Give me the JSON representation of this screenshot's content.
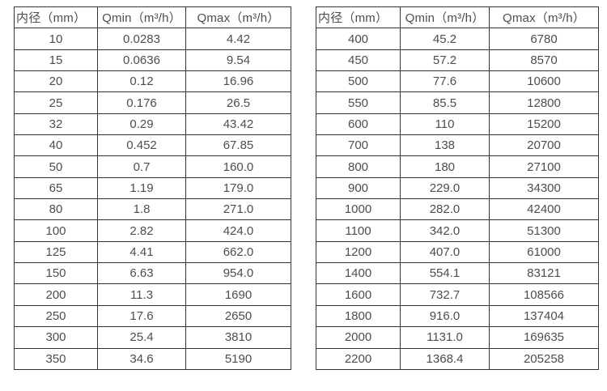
{
  "colors": {
    "background": "#ffffff",
    "border": "#333333",
    "text": "#4d4d4d"
  },
  "tables": [
    {
      "id": "flow-range-table-small-diameters",
      "headers": [
        "内径（mm）",
        "Qmin（m³/h）",
        "Qmax（m³/h）"
      ],
      "rows": [
        [
          "10",
          "0.0283",
          "4.42"
        ],
        [
          "15",
          "0.0636",
          "9.54"
        ],
        [
          "20",
          "0.12",
          "16.96"
        ],
        [
          "25",
          "0.176",
          "26.5"
        ],
        [
          "32",
          "0.29",
          "43.42"
        ],
        [
          "40",
          "0.452",
          "67.85"
        ],
        [
          "50",
          "0.7",
          "160.0"
        ],
        [
          "65",
          "1.19",
          "179.0"
        ],
        [
          "80",
          "1.8",
          "271.0"
        ],
        [
          "100",
          "2.82",
          "424.0"
        ],
        [
          "125",
          "4.41",
          "662.0"
        ],
        [
          "150",
          "6.63",
          "954.0"
        ],
        [
          "200",
          "11.3",
          "1690"
        ],
        [
          "250",
          "17.6",
          "2650"
        ],
        [
          "300",
          "25.4",
          "3810"
        ],
        [
          "350",
          "34.6",
          "5190"
        ]
      ]
    },
    {
      "id": "flow-range-table-large-diameters",
      "headers": [
        "内径（mm）",
        "Qmin（m³/h）",
        "Qmax（m³/h）"
      ],
      "rows": [
        [
          "400",
          "45.2",
          "6780"
        ],
        [
          "450",
          "57.2",
          "8570"
        ],
        [
          "500",
          "77.6",
          "10600"
        ],
        [
          "550",
          "85.5",
          "12800"
        ],
        [
          "600",
          "110",
          "15200"
        ],
        [
          "700",
          "138",
          "20700"
        ],
        [
          "800",
          "180",
          "27100"
        ],
        [
          "900",
          "229.0",
          "34300"
        ],
        [
          "1000",
          "282.0",
          "42400"
        ],
        [
          "1100",
          "342.0",
          "51300"
        ],
        [
          "1200",
          "407.0",
          "61000"
        ],
        [
          "1400",
          "554.1",
          "83121"
        ],
        [
          "1600",
          "732.7",
          "108566"
        ],
        [
          "1800",
          "916.0",
          "137404"
        ],
        [
          "2000",
          "1131.0",
          "169635"
        ],
        [
          "2200",
          "1368.4",
          "205258"
        ]
      ]
    }
  ]
}
